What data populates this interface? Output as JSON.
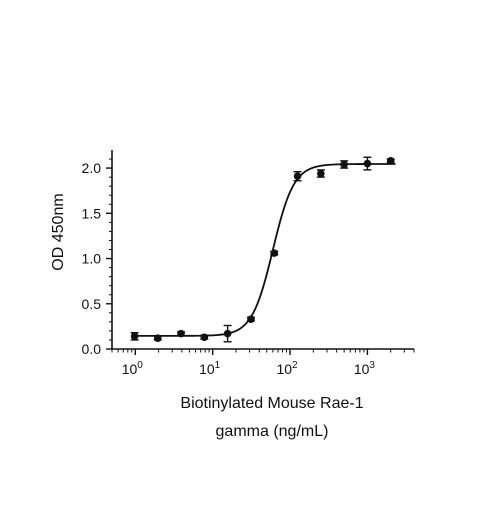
{
  "chart_data": {
    "type": "scatter",
    "title": "",
    "xlabel_line1": "Biotinylated Mouse Rae-1",
    "xlabel_line2": "gamma (ng/mL)",
    "ylabel": "OD 450nm",
    "x_scale": "log",
    "xlim": [
      0.5,
      4000
    ],
    "ylim": [
      0,
      2.2
    ],
    "x_ticks": [
      1,
      10,
      100,
      1000
    ],
    "x_tick_labels": [
      {
        "base": "10",
        "exp": "0"
      },
      {
        "base": "10",
        "exp": "1"
      },
      {
        "base": "10",
        "exp": "2"
      },
      {
        "base": "10",
        "exp": "3"
      }
    ],
    "y_ticks": [
      0,
      0.5,
      1.0,
      1.5,
      2.0
    ],
    "y_tick_labels": [
      "0.0",
      "0.5",
      "1.0",
      "1.5",
      "2.0"
    ],
    "grid": false,
    "legend": "none",
    "points": [
      {
        "x": 0.98,
        "y": 0.14,
        "err": 0.04
      },
      {
        "x": 1.95,
        "y": 0.12,
        "err": 0.02
      },
      {
        "x": 3.9,
        "y": 0.17,
        "err": 0.02
      },
      {
        "x": 7.8,
        "y": 0.13,
        "err": 0.02
      },
      {
        "x": 15.6,
        "y": 0.17,
        "err": 0.09
      },
      {
        "x": 31.25,
        "y": 0.33,
        "err": 0.02
      },
      {
        "x": 62.5,
        "y": 1.06,
        "err": 0.02
      },
      {
        "x": 125,
        "y": 1.91,
        "err": 0.05
      },
      {
        "x": 250,
        "y": 1.94,
        "err": 0.04
      },
      {
        "x": 500,
        "y": 2.04,
        "err": 0.04
      },
      {
        "x": 1000,
        "y": 2.05,
        "err": 0.07
      },
      {
        "x": 2000,
        "y": 2.08,
        "err": 0.02
      }
    ],
    "fit_curve": {
      "model": "4PL",
      "bottom": 0.145,
      "top": 2.045,
      "ec50": 60,
      "hill": 3.2
    },
    "colors": {
      "marker": "#111111",
      "line": "#111111",
      "axis": "#111111"
    }
  }
}
